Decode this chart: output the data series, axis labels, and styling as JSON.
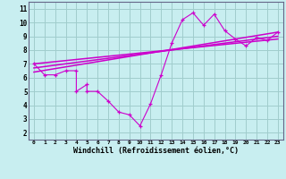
{
  "xlabel": "Windchill (Refroidissement éolien,°C)",
  "bg_color": "#c8eef0",
  "line_color": "#cc00cc",
  "grid_color": "#a0cccc",
  "series1_x": [
    0,
    1,
    2,
    3,
    4,
    4,
    5,
    5,
    6,
    7,
    8,
    9,
    10,
    11,
    12,
    13,
    14,
    15,
    16,
    17,
    18,
    19,
    20,
    21,
    22,
    23
  ],
  "series1_y": [
    7.0,
    6.2,
    6.2,
    6.5,
    6.5,
    5.0,
    5.5,
    5.0,
    5.0,
    4.3,
    3.5,
    3.3,
    2.5,
    4.1,
    6.2,
    8.5,
    10.2,
    10.7,
    9.8,
    10.6,
    9.4,
    8.8,
    8.3,
    8.9,
    8.7,
    9.3
  ],
  "trend1_x": [
    0,
    23
  ],
  "trend1_y": [
    7.0,
    8.8
  ],
  "trend2_x": [
    0,
    23
  ],
  "trend2_y": [
    6.7,
    9.0
  ],
  "trend3_x": [
    0,
    23
  ],
  "trend3_y": [
    6.4,
    9.3
  ],
  "xlim": [
    -0.5,
    23.5
  ],
  "ylim": [
    1.5,
    11.5
  ],
  "yticks": [
    2,
    3,
    4,
    5,
    6,
    7,
    8,
    9,
    10,
    11
  ],
  "xticks": [
    0,
    1,
    2,
    3,
    4,
    5,
    6,
    7,
    8,
    9,
    10,
    11,
    12,
    13,
    14,
    15,
    16,
    17,
    18,
    19,
    20,
    21,
    22,
    23
  ]
}
